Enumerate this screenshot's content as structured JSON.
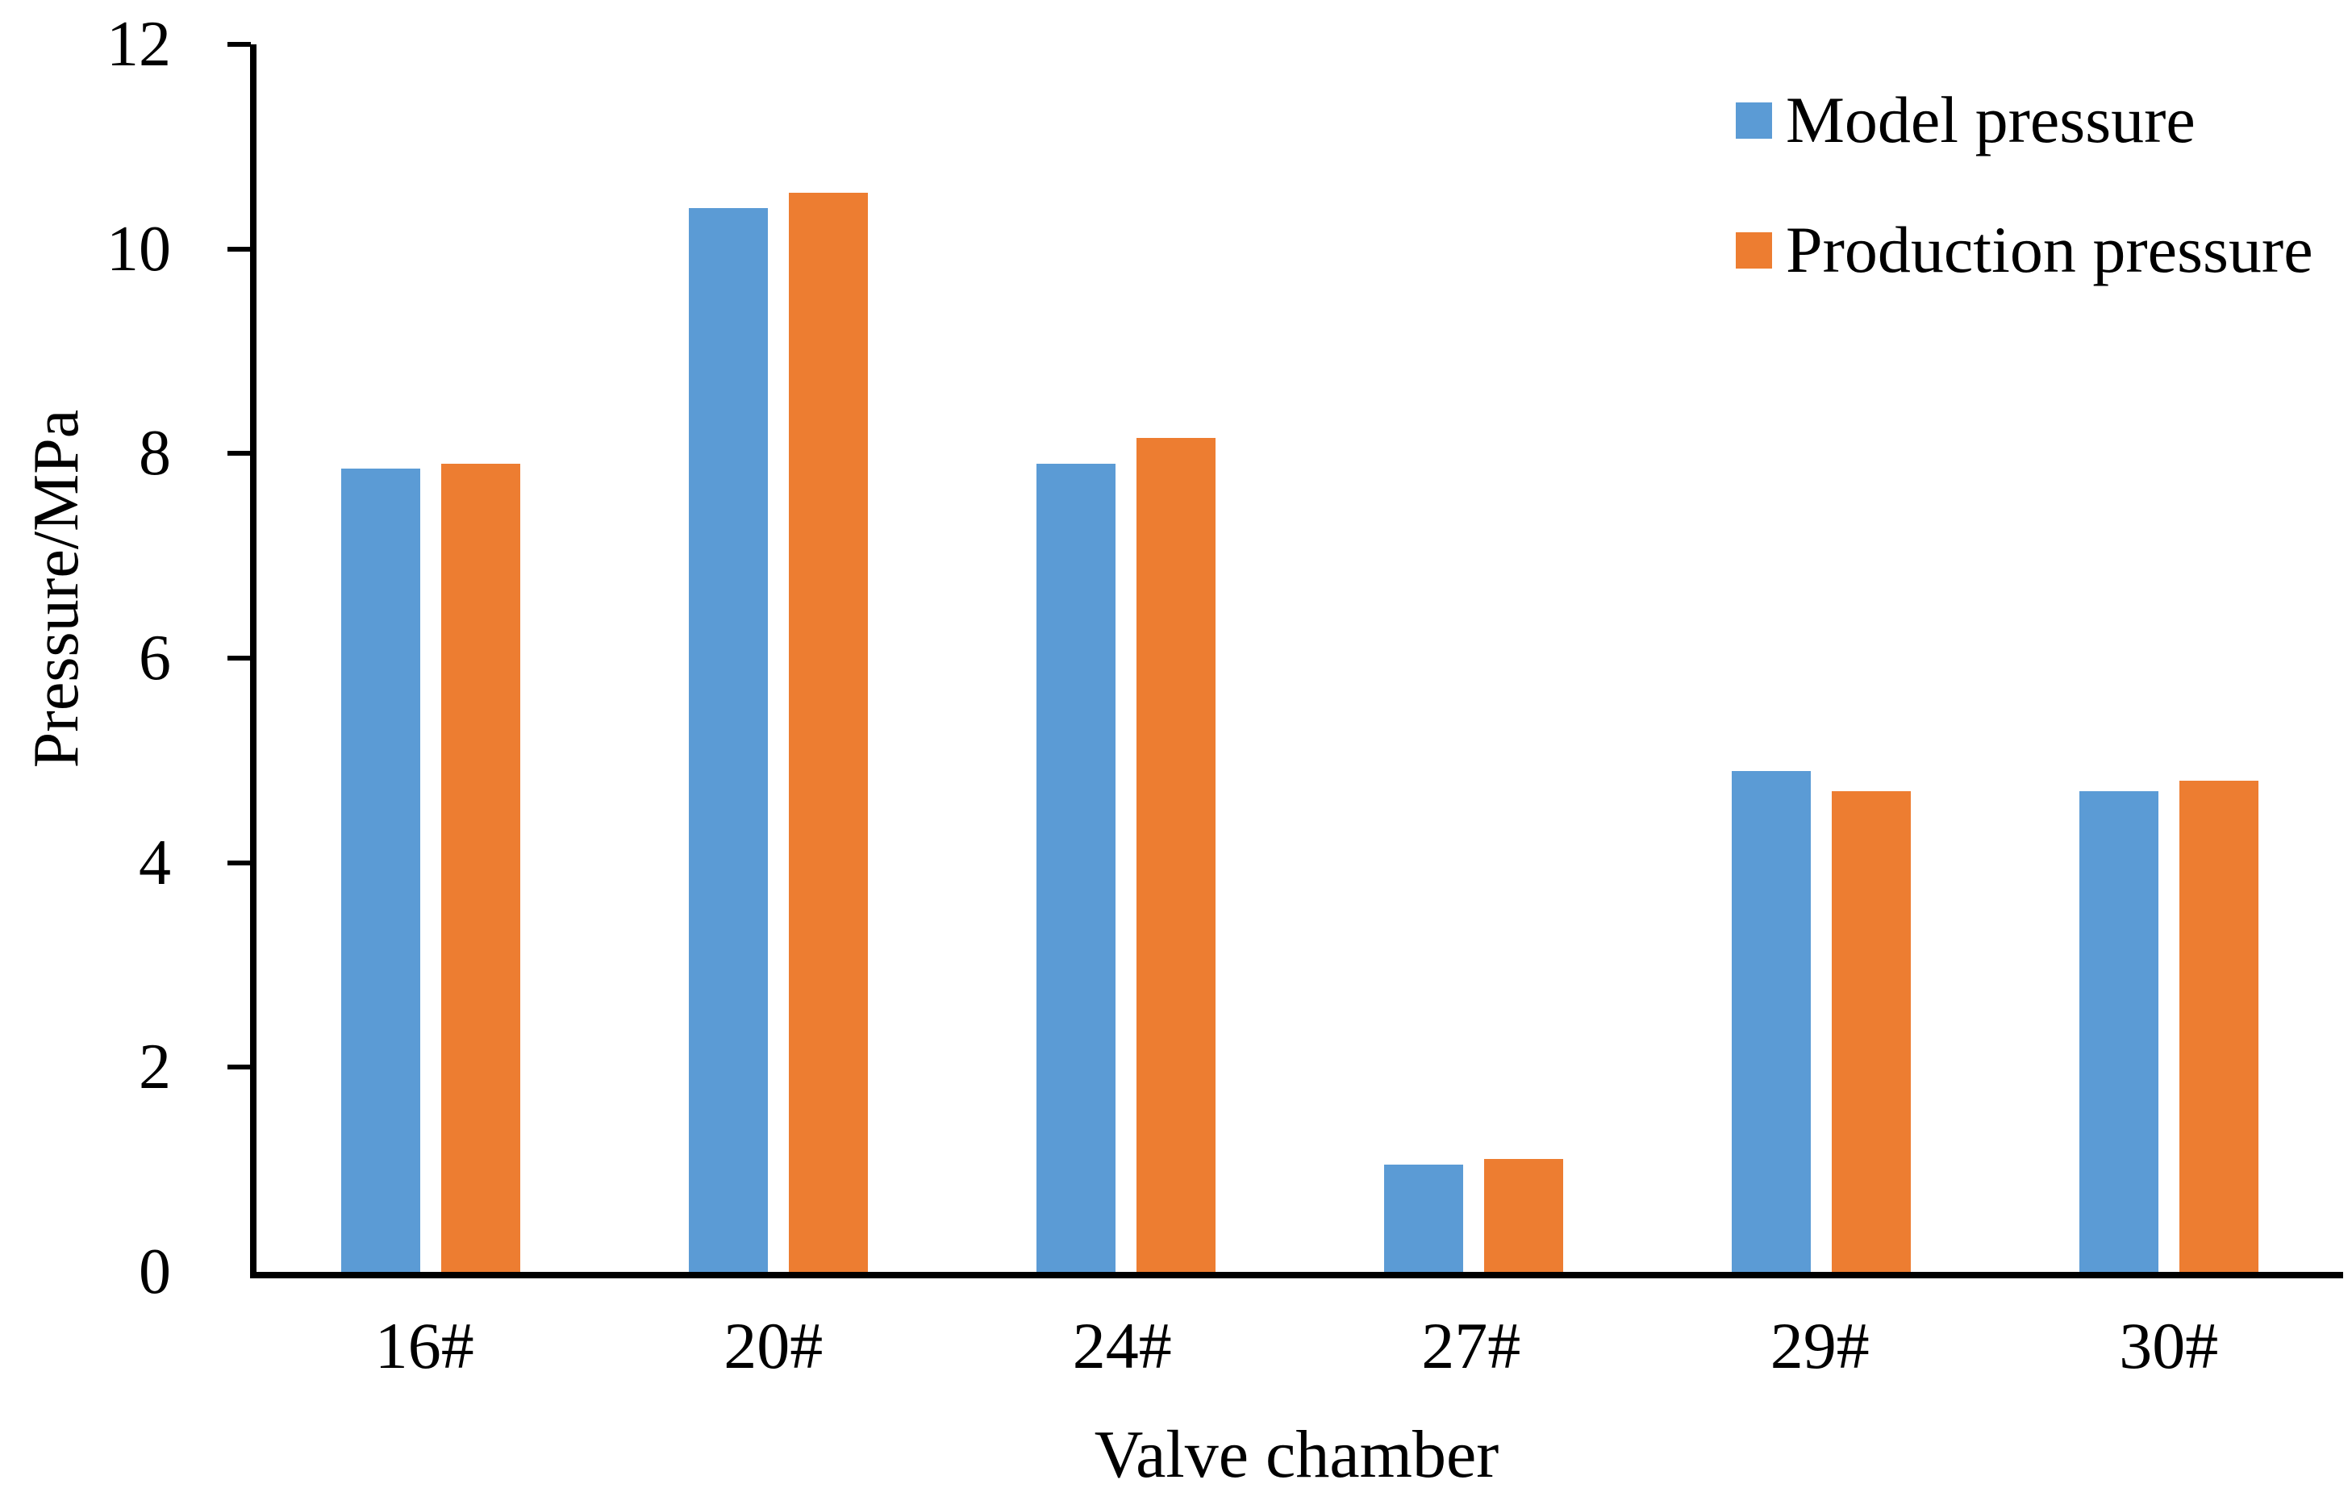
{
  "chart_data": {
    "type": "bar",
    "title": "",
    "categories": [
      "16#",
      "20#",
      "24#",
      "27#",
      "29#",
      "30#"
    ],
    "series": [
      {
        "name": "Model pressure",
        "color": "#5B9BD5",
        "values": [
          7.85,
          10.4,
          7.9,
          1.05,
          4.9,
          4.7
        ]
      },
      {
        "name": "Production pressure",
        "color": "#ED7D31",
        "values": [
          7.9,
          10.55,
          8.15,
          1.1,
          4.7,
          4.8
        ]
      }
    ],
    "xlabel": "Valve chamber",
    "ylabel": "Pressure/MPa",
    "ylim": [
      0,
      12
    ],
    "yticks": [
      0,
      2,
      4,
      6,
      8,
      10,
      12
    ],
    "grid": false,
    "legend_position": "top-right",
    "axis_color": "#000000",
    "background": "#ffffff"
  }
}
